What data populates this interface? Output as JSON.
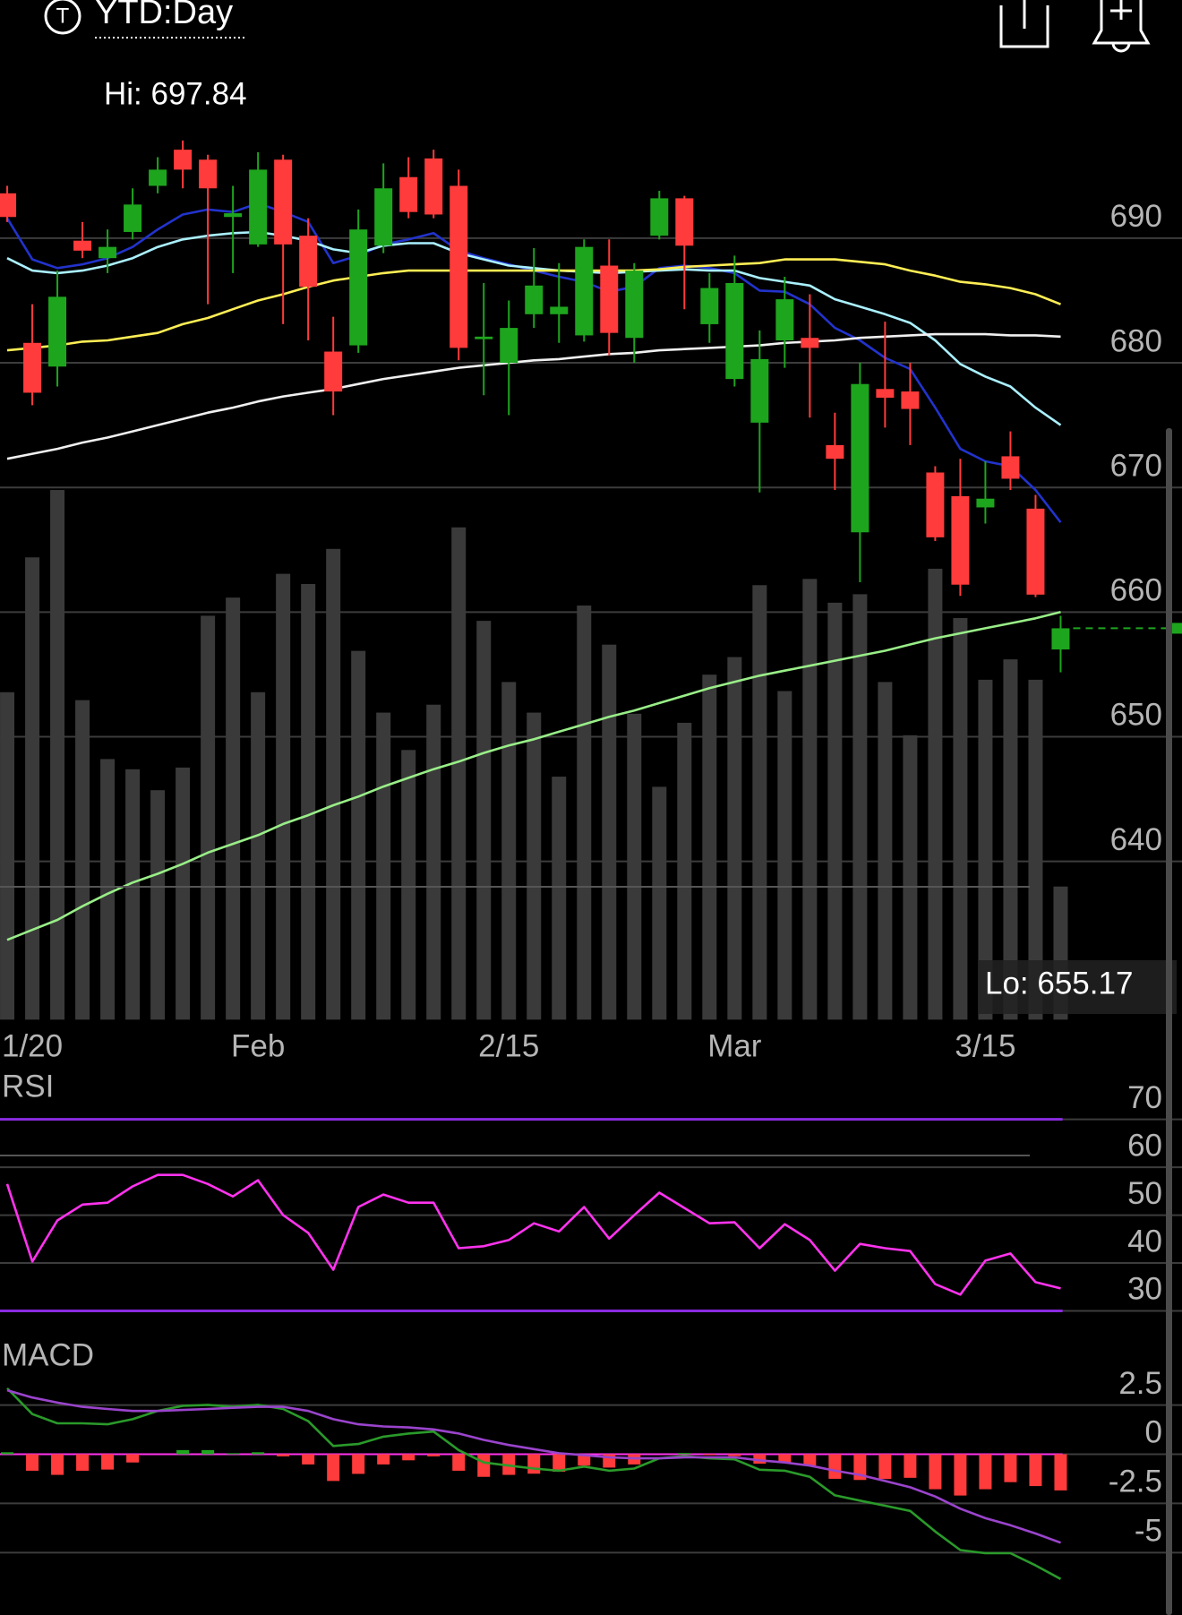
{
  "header": {
    "icon": "T",
    "period": "YTD:Day"
  },
  "chart_data": [
    {
      "type": "candlestick",
      "hi_label": "Hi: 697.84",
      "lo_label": "Lo: 655.17",
      "categories": [
        null,
        "1/20",
        null,
        null,
        null,
        null,
        null,
        null,
        null,
        null,
        "Feb",
        null,
        null,
        null,
        null,
        null,
        null,
        null,
        null,
        null,
        "2/15",
        null,
        null,
        null,
        null,
        null,
        null,
        null,
        null,
        "Mar",
        null,
        null,
        null,
        null,
        null,
        null,
        null,
        null,
        null,
        "3/15",
        null,
        null,
        null
      ],
      "open": [
        693.6,
        681.6,
        679.7,
        689.8,
        688.4,
        690.5,
        694.2,
        697.1,
        696.3,
        691.7,
        689.5,
        696.3,
        690.2,
        680.9,
        681.4,
        689.4,
        694.9,
        696.4,
        694.2,
        681.9,
        680.0,
        683.9,
        683.9,
        682.2,
        687.8,
        682.0,
        690.2,
        693.2,
        683.1,
        678.7,
        675.2,
        681.8,
        682.0,
        673.4,
        666.4,
        677.9,
        677.7,
        671.2,
        669.3,
        668.4,
        672.5,
        668.3,
        657.0
      ],
      "high": [
        694.2,
        684.7,
        687.4,
        691.3,
        690.7,
        694.0,
        696.5,
        697.84,
        696.7,
        694.2,
        696.9,
        696.7,
        691.6,
        683.7,
        692.3,
        696.0,
        696.5,
        697.1,
        695.5,
        686.4,
        685.0,
        689.2,
        688.0,
        689.9,
        689.9,
        688.0,
        693.8,
        693.4,
        687.2,
        688.6,
        682.6,
        686.9,
        685.5,
        676.0,
        680.0,
        683.3,
        680.0,
        671.7,
        672.3,
        672.1,
        674.5,
        669.4,
        659.7
      ],
      "low": [
        691.3,
        676.6,
        678.1,
        688.4,
        687.2,
        689.9,
        693.6,
        694.0,
        684.7,
        687.2,
        689.3,
        683.1,
        681.8,
        675.8,
        680.8,
        688.8,
        691.6,
        691.6,
        680.2,
        677.4,
        675.8,
        682.8,
        681.6,
        681.7,
        680.6,
        680.0,
        689.9,
        684.3,
        681.6,
        678.1,
        669.6,
        679.6,
        675.6,
        669.8,
        662.4,
        674.8,
        673.4,
        665.7,
        661.3,
        667.1,
        669.8,
        661.2,
        655.17
      ],
      "close": [
        691.7,
        677.6,
        685.3,
        689.0,
        689.3,
        692.7,
        695.5,
        695.5,
        694.0,
        692.0,
        695.5,
        689.5,
        686.1,
        677.7,
        690.7,
        694.0,
        692.1,
        691.9,
        681.2,
        682.1,
        682.8,
        686.2,
        684.5,
        689.3,
        682.4,
        687.4,
        693.2,
        689.4,
        686.0,
        686.4,
        680.3,
        685.1,
        681.2,
        672.3,
        678.3,
        677.2,
        676.3,
        666.0,
        662.2,
        669.1,
        670.7,
        661.4,
        658.7
      ],
      "up_color": "#1ea51e",
      "down_color": "#ff3b3b",
      "ylim": [
        627.3,
        702.5
      ],
      "yticks": [
        640,
        650,
        660,
        670,
        680,
        690
      ],
      "grid": true,
      "overlays": [
        {
          "color": "#2233cc",
          "values": [
            691.6,
            688.3,
            687.6,
            687.9,
            688.4,
            689.3,
            690.7,
            691.9,
            692.3,
            692.1,
            692.8,
            692.1,
            691.3,
            688.0,
            688.6,
            689.5,
            689.9,
            690.4,
            689.0,
            688.4,
            687.9,
            687.4,
            686.9,
            686.5,
            685.7,
            686.1,
            687.6,
            687.8,
            687.6,
            687.2,
            685.8,
            685.7,
            684.7,
            682.8,
            681.8,
            680.4,
            679.5,
            676.4,
            673.1,
            672.1,
            671.7,
            669.8,
            667.2
          ]
        },
        {
          "color": "#aaf0ff",
          "values": [
            688.4,
            687.4,
            687.2,
            687.4,
            687.8,
            688.4,
            689.3,
            689.9,
            690.2,
            690.4,
            690.5,
            690.2,
            689.8,
            689.1,
            688.8,
            689.4,
            689.6,
            689.6,
            688.8,
            688.3,
            687.8,
            687.6,
            687.4,
            687.3,
            687.2,
            687.3,
            687.4,
            687.5,
            687.4,
            687.4,
            686.8,
            686.5,
            686.2,
            685.1,
            684.5,
            683.9,
            683.2,
            681.8,
            679.9,
            678.9,
            678.1,
            676.4,
            675.0
          ]
        },
        {
          "color": "#ffee55",
          "values": [
            681.0,
            681.2,
            681.4,
            681.7,
            681.8,
            682.1,
            682.4,
            683.1,
            683.6,
            684.3,
            685.0,
            685.5,
            686.1,
            686.6,
            686.9,
            687.2,
            687.4,
            687.4,
            687.4,
            687.4,
            687.4,
            687.4,
            687.4,
            687.4,
            687.4,
            687.4,
            687.5,
            687.7,
            687.8,
            687.9,
            688.0,
            688.3,
            688.3,
            688.3,
            688.1,
            687.9,
            687.4,
            687.0,
            686.5,
            686.3,
            686.0,
            685.5,
            684.7
          ]
        },
        {
          "color": "#f0f0f0",
          "values": [
            672.3,
            672.7,
            673.1,
            673.6,
            674.0,
            674.5,
            675.0,
            675.5,
            676.0,
            676.4,
            676.9,
            677.3,
            677.6,
            677.9,
            678.3,
            678.7,
            679.0,
            679.3,
            679.6,
            679.8,
            680.0,
            680.2,
            680.3,
            680.5,
            680.7,
            680.8,
            681.0,
            681.1,
            681.2,
            681.3,
            681.4,
            681.6,
            681.7,
            681.8,
            682.0,
            682.1,
            682.2,
            682.3,
            682.3,
            682.3,
            682.2,
            682.2,
            682.1
          ]
        },
        {
          "color": "#99ee88",
          "values": [
            633.7,
            634.5,
            635.3,
            636.4,
            637.4,
            638.3,
            639.0,
            639.8,
            640.7,
            641.4,
            642.1,
            643.0,
            643.7,
            644.5,
            645.2,
            646.0,
            646.7,
            647.4,
            648.0,
            648.7,
            649.3,
            649.8,
            650.4,
            651.0,
            651.6,
            652.1,
            652.7,
            653.3,
            653.9,
            654.4,
            654.9,
            655.3,
            655.7,
            656.1,
            656.5,
            656.9,
            657.4,
            657.9,
            658.3,
            658.7,
            659.1,
            659.5,
            660.0
          ]
        }
      ],
      "volume": {
        "color": "#3a3a3a",
        "ylim": [
          0,
          100
        ],
        "values": [
          57.8,
          81.6,
          93.5,
          56.4,
          46.0,
          44.2,
          40.5,
          44.5,
          71.3,
          74.5,
          57.8,
          78.7,
          76.9,
          83.1,
          65.1,
          54.2,
          47.6,
          55.6,
          86.9,
          70.4,
          59.6,
          54.2,
          42.9,
          73.1,
          66.2,
          54.0,
          41.1,
          52.4,
          60.9,
          64.0,
          76.7,
          58.0,
          77.8,
          73.6,
          75.1,
          59.6,
          50.2,
          79.6,
          70.9,
          60.0,
          63.6,
          60.0,
          23.5
        ]
      }
    },
    {
      "type": "line",
      "title": "RSI",
      "ylim": [
        26.3,
        79.0
      ],
      "yticks": [
        30,
        40,
        50,
        60,
        70
      ],
      "grid": true,
      "levels": [
        70,
        30
      ],
      "level_color": "#8a2be2",
      "series": [
        {
          "color": "#ff33ee",
          "values": [
            56.5,
            40.3,
            48.9,
            52.2,
            52.6,
            56.0,
            58.4,
            58.4,
            56.5,
            53.9,
            57.3,
            50.0,
            46.3,
            38.6,
            51.7,
            54.3,
            52.6,
            52.6,
            43.1,
            43.5,
            44.8,
            48.3,
            46.6,
            51.7,
            45.1,
            50.0,
            54.7,
            51.5,
            48.3,
            48.5,
            43.1,
            48.1,
            44.8,
            38.4,
            44.0,
            43.1,
            42.5,
            35.6,
            33.4,
            40.5,
            42.0,
            36.0,
            34.7
          ]
        }
      ]
    },
    {
      "type": "macd",
      "title": "MACD",
      "ylim": [
        -7.75,
        5.86
      ],
      "yticks": [
        -5,
        -2.5,
        0,
        2.5
      ],
      "grid": true,
      "zero_color": "#ff33ee",
      "series": [
        {
          "color": "#2a9a2a",
          "values": [
            3.35,
            2.04,
            1.57,
            1.57,
            1.52,
            1.78,
            2.2,
            2.46,
            2.51,
            2.41,
            2.51,
            2.3,
            1.68,
            0.42,
            0.52,
            0.89,
            1.05,
            1.15,
            0.21,
            -0.42,
            -0.58,
            -0.73,
            -0.84,
            -0.63,
            -0.84,
            -0.73,
            -0.21,
            -0.1,
            -0.21,
            -0.26,
            -0.79,
            -0.84,
            -1.15,
            -2.09,
            -2.36,
            -2.62,
            -2.88,
            -3.93,
            -4.87,
            -5.03,
            -5.03,
            -5.65,
            -6.34
          ]
        },
        {
          "color": "#9a44cc",
          "values": [
            3.25,
            2.88,
            2.62,
            2.41,
            2.3,
            2.2,
            2.2,
            2.25,
            2.3,
            2.36,
            2.41,
            2.41,
            2.2,
            1.78,
            1.52,
            1.41,
            1.36,
            1.26,
            1.05,
            0.73,
            0.47,
            0.26,
            0.05,
            -0.05,
            -0.16,
            -0.21,
            -0.21,
            -0.16,
            -0.16,
            -0.16,
            -0.31,
            -0.42,
            -0.58,
            -0.84,
            -1.05,
            -1.36,
            -1.68,
            -2.15,
            -2.77,
            -3.25,
            -3.61,
            -4.03,
            -4.5
          ]
        }
      ],
      "histogram": {
        "up_color": "#1ea51e",
        "down_color": "#ff3b3b",
        "values": [
          0.1,
          -0.84,
          -1.05,
          -0.84,
          -0.78,
          -0.42,
          0.0,
          0.21,
          0.21,
          0.05,
          0.1,
          -0.11,
          -0.52,
          -1.36,
          -1.0,
          -0.52,
          -0.31,
          -0.11,
          -0.84,
          -1.15,
          -1.05,
          -0.99,
          -0.89,
          -0.58,
          -0.68,
          -0.52,
          0.0,
          0.06,
          -0.05,
          -0.1,
          -0.48,
          -0.42,
          -0.57,
          -1.25,
          -1.31,
          -1.26,
          -1.2,
          -1.78,
          -2.1,
          -1.78,
          -1.42,
          -1.62,
          -1.84
        ]
      }
    }
  ]
}
